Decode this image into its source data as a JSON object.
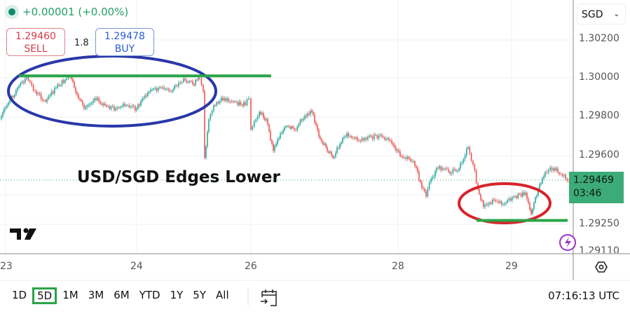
{
  "header": {
    "change": "+0.00001 (+0.00%)",
    "sell": {
      "price": "1.29460",
      "label": "SELL"
    },
    "spread": "1.8",
    "buy": {
      "price": "1.29478",
      "label": "BUY"
    },
    "currency": "SGD"
  },
  "annotation": {
    "headline": "USD/SGD Edges Lower"
  },
  "price_label": {
    "price": "1.29469",
    "countdown": "03:46"
  },
  "toolbar": {
    "ranges": [
      "1D",
      "5D",
      "1M",
      "3M",
      "6M",
      "YTD",
      "1Y",
      "5Y",
      "All"
    ],
    "selected": "5D",
    "clock": "07:16:13 UTC"
  },
  "colors": {
    "up": "#26a69a",
    "down": "#ef5350",
    "annotation_green": "#2aa548",
    "ellipse_blue": "#2a38a8",
    "ellipse_red": "#d8232a",
    "price_label_bg": "#3dab77"
  },
  "chart_data": {
    "type": "candlestick",
    "title": "",
    "xlabel": "",
    "ylabel": "",
    "x_ticks": [
      "23",
      "24",
      "26",
      "28",
      "29"
    ],
    "y_ticks": [
      "1.30200",
      "1.30000",
      "1.29800",
      "1.29600",
      "1.29250",
      "1.29110"
    ],
    "ylim": [
      1.2911,
      1.3024
    ],
    "grid": true,
    "approx_close_path": [
      1.29785,
      1.29858,
      1.29949,
      1.30004,
      1.29931,
      1.29876,
      1.29949,
      1.29996,
      1.30004,
      1.29913,
      1.2984,
      1.29894,
      1.29858,
      1.2984,
      1.29858,
      1.2984,
      1.29894,
      1.29938,
      1.29949,
      1.29931,
      1.29975,
      1.29996,
      1.29967,
      1.29996,
      1.29931,
      1.29585,
      1.29785,
      1.29858,
      1.29894,
      1.29876,
      1.29858,
      1.29894,
      1.29731,
      1.29822,
      1.29785,
      1.29621,
      1.29712,
      1.29749,
      1.29731,
      1.29803,
      1.29822,
      1.29694,
      1.2964,
      1.29585,
      1.29658,
      1.29712,
      1.29676,
      1.29694,
      1.29694,
      1.29676,
      1.29621,
      1.29585,
      1.29567,
      1.29458,
      1.29385,
      1.29476,
      1.2953,
      1.29512,
      1.2953,
      1.2964,
      1.29549,
      1.29421,
      1.2933,
      1.29367,
      1.29348,
      1.29385,
      1.29403,
      1.29294,
      1.29421,
      1.29512,
      1.2953,
      1.29501,
      1.29465
    ],
    "last_price": 1.29469,
    "annotations": [
      {
        "type": "resistance-line",
        "price": 1.3001
      },
      {
        "type": "support-line",
        "price": 1.2926
      }
    ]
  }
}
